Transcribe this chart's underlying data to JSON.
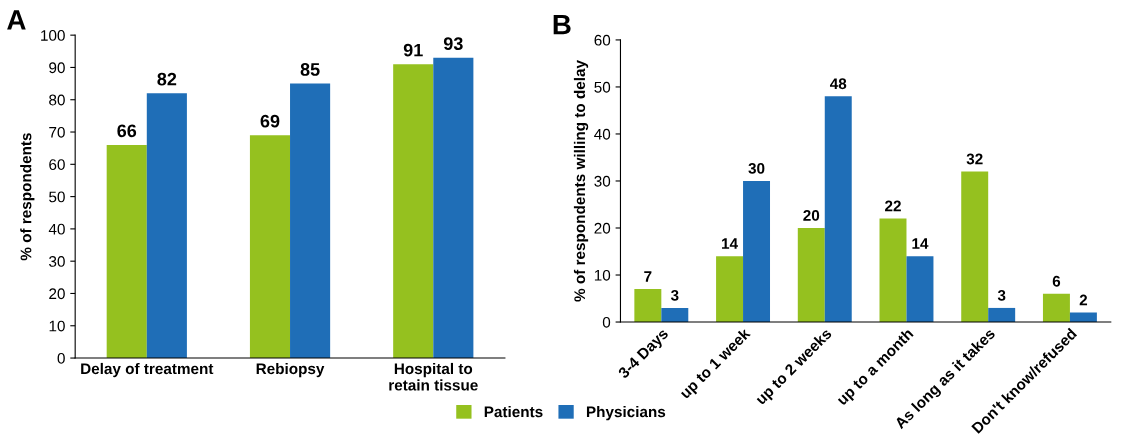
{
  "chart_data": [
    {
      "type": "bar",
      "title": "A",
      "ylabel": "% of respondents",
      "categories": [
        "Delay of treatment",
        "Rebiopsy",
        "Hospital to\nretain tissue"
      ],
      "series": [
        {
          "color": "#95c11f",
          "values": [
            66,
            69,
            91
          ]
        },
        {
          "color": "#1f6eb7",
          "values": [
            82,
            85,
            93
          ]
        }
      ],
      "ylim": [
        0,
        100
      ],
      "yticks": [
        0,
        10,
        20,
        30,
        40,
        50,
        60,
        70,
        80,
        90,
        100
      ],
      "data_labels": true
    },
    {
      "type": "bar",
      "title": "B",
      "ylabel": "% of respondents willing to delay",
      "categories": [
        "3-4 Days",
        "up to 1 week",
        "up to 2 weeks",
        "up to a month",
        "As long as it takes",
        "Don't know/refused"
      ],
      "series": [
        {
          "name": "Patients",
          "color": "#95c11f",
          "values": [
            7,
            14,
            20,
            22,
            32,
            6
          ]
        },
        {
          "name": "Physicians",
          "color": "#1f6eb7",
          "values": [
            3,
            30,
            48,
            14,
            3,
            2
          ]
        }
      ],
      "ylim": [
        0,
        60
      ],
      "yticks": [
        0,
        10,
        20,
        30,
        40,
        50,
        60
      ],
      "data_labels": true,
      "legend": "bottom"
    }
  ]
}
